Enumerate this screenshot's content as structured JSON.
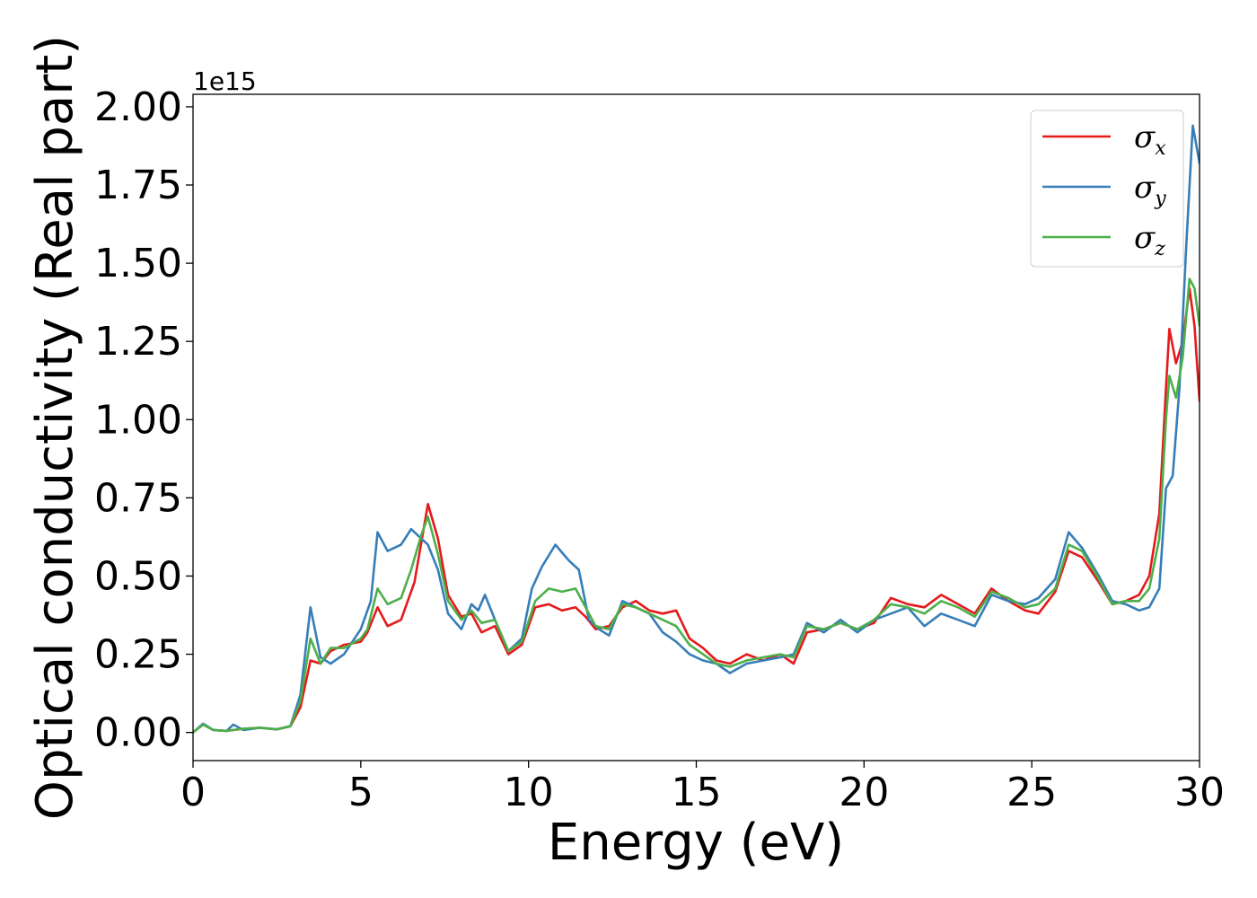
{
  "chart_data": {
    "type": "line",
    "title": "",
    "xlabel": "Energy (eV)",
    "ylabel": "Optical conductivity (Real part)",
    "y_offset_text": "1e15",
    "xlim": [
      0,
      30
    ],
    "ylim": [
      -0.09,
      2.04
    ],
    "x_ticks": [
      0,
      5,
      10,
      15,
      20,
      25,
      30
    ],
    "x_tick_labels": [
      "0",
      "5",
      "10",
      "15",
      "20",
      "25",
      "30"
    ],
    "y_ticks": [
      0,
      0.25,
      0.5,
      0.75,
      1.0,
      1.25,
      1.5,
      1.75,
      2.0
    ],
    "y_tick_labels": [
      "0.00",
      "0.25",
      "0.50",
      "0.75",
      "1.00",
      "1.25",
      "1.50",
      "1.75",
      "2.00"
    ],
    "grid": false,
    "legend_position": "top-right",
    "series": [
      {
        "name": "σx",
        "legend_symbol": "σ",
        "legend_subscript": "x",
        "color": "#e41a1c",
        "points": [
          [
            0,
            0
          ],
          [
            0.3,
            0.025
          ],
          [
            0.6,
            0.008
          ],
          [
            1.0,
            0.005
          ],
          [
            1.5,
            0.012
          ],
          [
            2.0,
            0.015
          ],
          [
            2.5,
            0.01
          ],
          [
            2.9,
            0.02
          ],
          [
            3.2,
            0.08
          ],
          [
            3.5,
            0.23
          ],
          [
            3.8,
            0.22
          ],
          [
            4.1,
            0.26
          ],
          [
            4.5,
            0.28
          ],
          [
            5.0,
            0.29
          ],
          [
            5.2,
            0.32
          ],
          [
            5.5,
            0.4
          ],
          [
            5.8,
            0.34
          ],
          [
            6.2,
            0.36
          ],
          [
            6.6,
            0.48
          ],
          [
            7.0,
            0.73
          ],
          [
            7.3,
            0.62
          ],
          [
            7.6,
            0.44
          ],
          [
            8.0,
            0.37
          ],
          [
            8.3,
            0.38
          ],
          [
            8.6,
            0.32
          ],
          [
            9.0,
            0.34
          ],
          [
            9.4,
            0.25
          ],
          [
            9.8,
            0.28
          ],
          [
            10.2,
            0.4
          ],
          [
            10.6,
            0.41
          ],
          [
            11.0,
            0.39
          ],
          [
            11.4,
            0.4
          ],
          [
            11.7,
            0.37
          ],
          [
            12.0,
            0.33
          ],
          [
            12.4,
            0.34
          ],
          [
            12.8,
            0.4
          ],
          [
            13.2,
            0.42
          ],
          [
            13.6,
            0.39
          ],
          [
            14.0,
            0.38
          ],
          [
            14.4,
            0.39
          ],
          [
            14.8,
            0.3
          ],
          [
            15.2,
            0.27
          ],
          [
            15.6,
            0.23
          ],
          [
            16.0,
            0.22
          ],
          [
            16.5,
            0.25
          ],
          [
            17.0,
            0.23
          ],
          [
            17.5,
            0.25
          ],
          [
            17.9,
            0.22
          ],
          [
            18.3,
            0.32
          ],
          [
            18.8,
            0.33
          ],
          [
            19.3,
            0.35
          ],
          [
            19.8,
            0.33
          ],
          [
            20.3,
            0.35
          ],
          [
            20.8,
            0.43
          ],
          [
            21.3,
            0.41
          ],
          [
            21.8,
            0.4
          ],
          [
            22.3,
            0.44
          ],
          [
            22.8,
            0.41
          ],
          [
            23.3,
            0.38
          ],
          [
            23.8,
            0.46
          ],
          [
            24.3,
            0.42
          ],
          [
            24.8,
            0.39
          ],
          [
            25.2,
            0.38
          ],
          [
            25.7,
            0.45
          ],
          [
            26.1,
            0.58
          ],
          [
            26.5,
            0.56
          ],
          [
            27.0,
            0.48
          ],
          [
            27.4,
            0.41
          ],
          [
            27.8,
            0.42
          ],
          [
            28.2,
            0.44
          ],
          [
            28.5,
            0.5
          ],
          [
            28.8,
            0.7
          ],
          [
            29.0,
            1.1
          ],
          [
            29.1,
            1.29
          ],
          [
            29.3,
            1.18
          ],
          [
            29.5,
            1.25
          ],
          [
            29.7,
            1.42
          ],
          [
            29.85,
            1.3
          ],
          [
            30.0,
            1.06
          ]
        ]
      },
      {
        "name": "σy",
        "legend_symbol": "σ",
        "legend_subscript": "y",
        "color": "#377eb8",
        "points": [
          [
            0,
            0
          ],
          [
            0.3,
            0.028
          ],
          [
            0.6,
            0.008
          ],
          [
            1.0,
            0.005
          ],
          [
            1.2,
            0.025
          ],
          [
            1.5,
            0.008
          ],
          [
            2.0,
            0.015
          ],
          [
            2.5,
            0.01
          ],
          [
            2.9,
            0.02
          ],
          [
            3.2,
            0.12
          ],
          [
            3.5,
            0.4
          ],
          [
            3.8,
            0.24
          ],
          [
            4.1,
            0.22
          ],
          [
            4.5,
            0.25
          ],
          [
            5.0,
            0.33
          ],
          [
            5.3,
            0.42
          ],
          [
            5.5,
            0.64
          ],
          [
            5.8,
            0.58
          ],
          [
            6.2,
            0.6
          ],
          [
            6.5,
            0.65
          ],
          [
            6.8,
            0.62
          ],
          [
            7.0,
            0.6
          ],
          [
            7.3,
            0.52
          ],
          [
            7.6,
            0.38
          ],
          [
            8.0,
            0.33
          ],
          [
            8.3,
            0.41
          ],
          [
            8.5,
            0.39
          ],
          [
            8.7,
            0.44
          ],
          [
            9.0,
            0.36
          ],
          [
            9.4,
            0.26
          ],
          [
            9.8,
            0.3
          ],
          [
            10.1,
            0.46
          ],
          [
            10.4,
            0.53
          ],
          [
            10.8,
            0.6
          ],
          [
            11.2,
            0.55
          ],
          [
            11.5,
            0.52
          ],
          [
            11.8,
            0.36
          ],
          [
            12.1,
            0.33
          ],
          [
            12.4,
            0.31
          ],
          [
            12.8,
            0.42
          ],
          [
            13.2,
            0.4
          ],
          [
            13.6,
            0.38
          ],
          [
            14.0,
            0.32
          ],
          [
            14.4,
            0.29
          ],
          [
            14.8,
            0.25
          ],
          [
            15.2,
            0.23
          ],
          [
            15.6,
            0.22
          ],
          [
            16.0,
            0.19
          ],
          [
            16.5,
            0.22
          ],
          [
            17.0,
            0.23
          ],
          [
            17.5,
            0.24
          ],
          [
            17.9,
            0.25
          ],
          [
            18.3,
            0.35
          ],
          [
            18.8,
            0.32
          ],
          [
            19.3,
            0.36
          ],
          [
            19.8,
            0.32
          ],
          [
            20.3,
            0.36
          ],
          [
            20.8,
            0.38
          ],
          [
            21.3,
            0.4
          ],
          [
            21.8,
            0.34
          ],
          [
            22.3,
            0.38
          ],
          [
            22.8,
            0.36
          ],
          [
            23.3,
            0.34
          ],
          [
            23.8,
            0.44
          ],
          [
            24.3,
            0.42
          ],
          [
            24.8,
            0.41
          ],
          [
            25.2,
            0.43
          ],
          [
            25.7,
            0.49
          ],
          [
            26.1,
            0.64
          ],
          [
            26.5,
            0.59
          ],
          [
            27.0,
            0.5
          ],
          [
            27.4,
            0.42
          ],
          [
            27.8,
            0.41
          ],
          [
            28.2,
            0.39
          ],
          [
            28.5,
            0.4
          ],
          [
            28.8,
            0.46
          ],
          [
            29.0,
            0.78
          ],
          [
            29.2,
            0.82
          ],
          [
            29.4,
            1.1
          ],
          [
            29.6,
            1.55
          ],
          [
            29.8,
            1.94
          ],
          [
            30.0,
            1.82
          ]
        ]
      },
      {
        "name": "σz",
        "legend_symbol": "σ",
        "legend_subscript": "z",
        "color": "#4daf4a",
        "points": [
          [
            0,
            0
          ],
          [
            0.3,
            0.025
          ],
          [
            0.6,
            0.008
          ],
          [
            1.0,
            0.005
          ],
          [
            1.5,
            0.012
          ],
          [
            2.0,
            0.015
          ],
          [
            2.5,
            0.01
          ],
          [
            2.9,
            0.02
          ],
          [
            3.2,
            0.1
          ],
          [
            3.5,
            0.3
          ],
          [
            3.8,
            0.22
          ],
          [
            4.1,
            0.27
          ],
          [
            4.5,
            0.27
          ],
          [
            5.0,
            0.3
          ],
          [
            5.2,
            0.33
          ],
          [
            5.5,
            0.46
          ],
          [
            5.8,
            0.41
          ],
          [
            6.2,
            0.43
          ],
          [
            6.5,
            0.52
          ],
          [
            6.8,
            0.63
          ],
          [
            7.0,
            0.69
          ],
          [
            7.3,
            0.57
          ],
          [
            7.6,
            0.42
          ],
          [
            8.0,
            0.36
          ],
          [
            8.3,
            0.39
          ],
          [
            8.6,
            0.35
          ],
          [
            9.0,
            0.36
          ],
          [
            9.4,
            0.26
          ],
          [
            9.8,
            0.29
          ],
          [
            10.2,
            0.42
          ],
          [
            10.6,
            0.46
          ],
          [
            11.0,
            0.45
          ],
          [
            11.4,
            0.46
          ],
          [
            11.7,
            0.4
          ],
          [
            12.0,
            0.34
          ],
          [
            12.4,
            0.33
          ],
          [
            12.8,
            0.41
          ],
          [
            13.2,
            0.4
          ],
          [
            13.6,
            0.38
          ],
          [
            14.0,
            0.36
          ],
          [
            14.4,
            0.34
          ],
          [
            14.8,
            0.28
          ],
          [
            15.2,
            0.25
          ],
          [
            15.6,
            0.22
          ],
          [
            16.0,
            0.21
          ],
          [
            16.5,
            0.23
          ],
          [
            17.0,
            0.24
          ],
          [
            17.5,
            0.25
          ],
          [
            17.9,
            0.24
          ],
          [
            18.3,
            0.34
          ],
          [
            18.8,
            0.33
          ],
          [
            19.3,
            0.35
          ],
          [
            19.8,
            0.33
          ],
          [
            20.3,
            0.36
          ],
          [
            20.8,
            0.41
          ],
          [
            21.3,
            0.4
          ],
          [
            21.8,
            0.38
          ],
          [
            22.3,
            0.42
          ],
          [
            22.8,
            0.4
          ],
          [
            23.3,
            0.37
          ],
          [
            23.8,
            0.45
          ],
          [
            24.3,
            0.43
          ],
          [
            24.8,
            0.4
          ],
          [
            25.2,
            0.41
          ],
          [
            25.7,
            0.46
          ],
          [
            26.1,
            0.6
          ],
          [
            26.5,
            0.58
          ],
          [
            27.0,
            0.49
          ],
          [
            27.4,
            0.41
          ],
          [
            27.8,
            0.42
          ],
          [
            28.2,
            0.42
          ],
          [
            28.5,
            0.46
          ],
          [
            28.8,
            0.62
          ],
          [
            29.0,
            1.0
          ],
          [
            29.1,
            1.14
          ],
          [
            29.3,
            1.07
          ],
          [
            29.5,
            1.2
          ],
          [
            29.7,
            1.45
          ],
          [
            29.85,
            1.42
          ],
          [
            30.0,
            1.3
          ]
        ]
      }
    ]
  }
}
